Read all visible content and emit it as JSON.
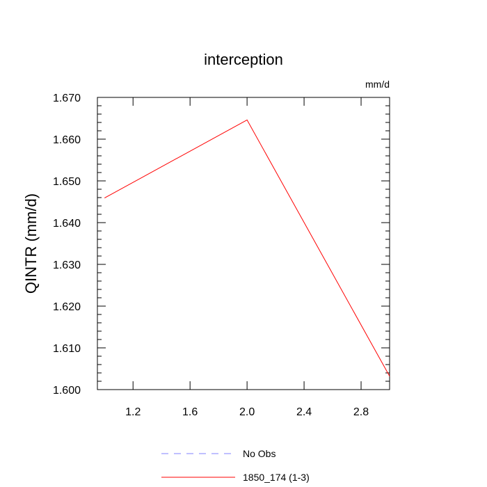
{
  "chart_data": {
    "type": "line",
    "title": "interception",
    "units_label": "mm/d",
    "xlabel": "",
    "ylabel": "QINTR  (mm/d)",
    "xlim": [
      0.95,
      3.0
    ],
    "ylim": [
      1.6,
      1.67
    ],
    "x_ticks": [
      1.2,
      1.6,
      2.0,
      2.4,
      2.8
    ],
    "x_tick_labels": [
      "1.2",
      "1.6",
      "2.0",
      "2.4",
      "2.8"
    ],
    "y_ticks": [
      1.6,
      1.61,
      1.62,
      1.63,
      1.64,
      1.65,
      1.66,
      1.67
    ],
    "y_tick_labels": [
      "1.600",
      "1.610",
      "1.620",
      "1.630",
      "1.640",
      "1.650",
      "1.660",
      "1.670"
    ],
    "grid": false,
    "legend_position": "bottom",
    "series": [
      {
        "name": "No Obs",
        "color": "#8080ff",
        "dash": "dashed",
        "x": [],
        "y": []
      },
      {
        "name": "1850_174 (1-3)",
        "color": "#ff0000",
        "dash": "solid",
        "x": [
          1.0,
          2.0,
          3.0
        ],
        "y": [
          1.6459,
          1.6646,
          1.6032
        ]
      }
    ]
  }
}
